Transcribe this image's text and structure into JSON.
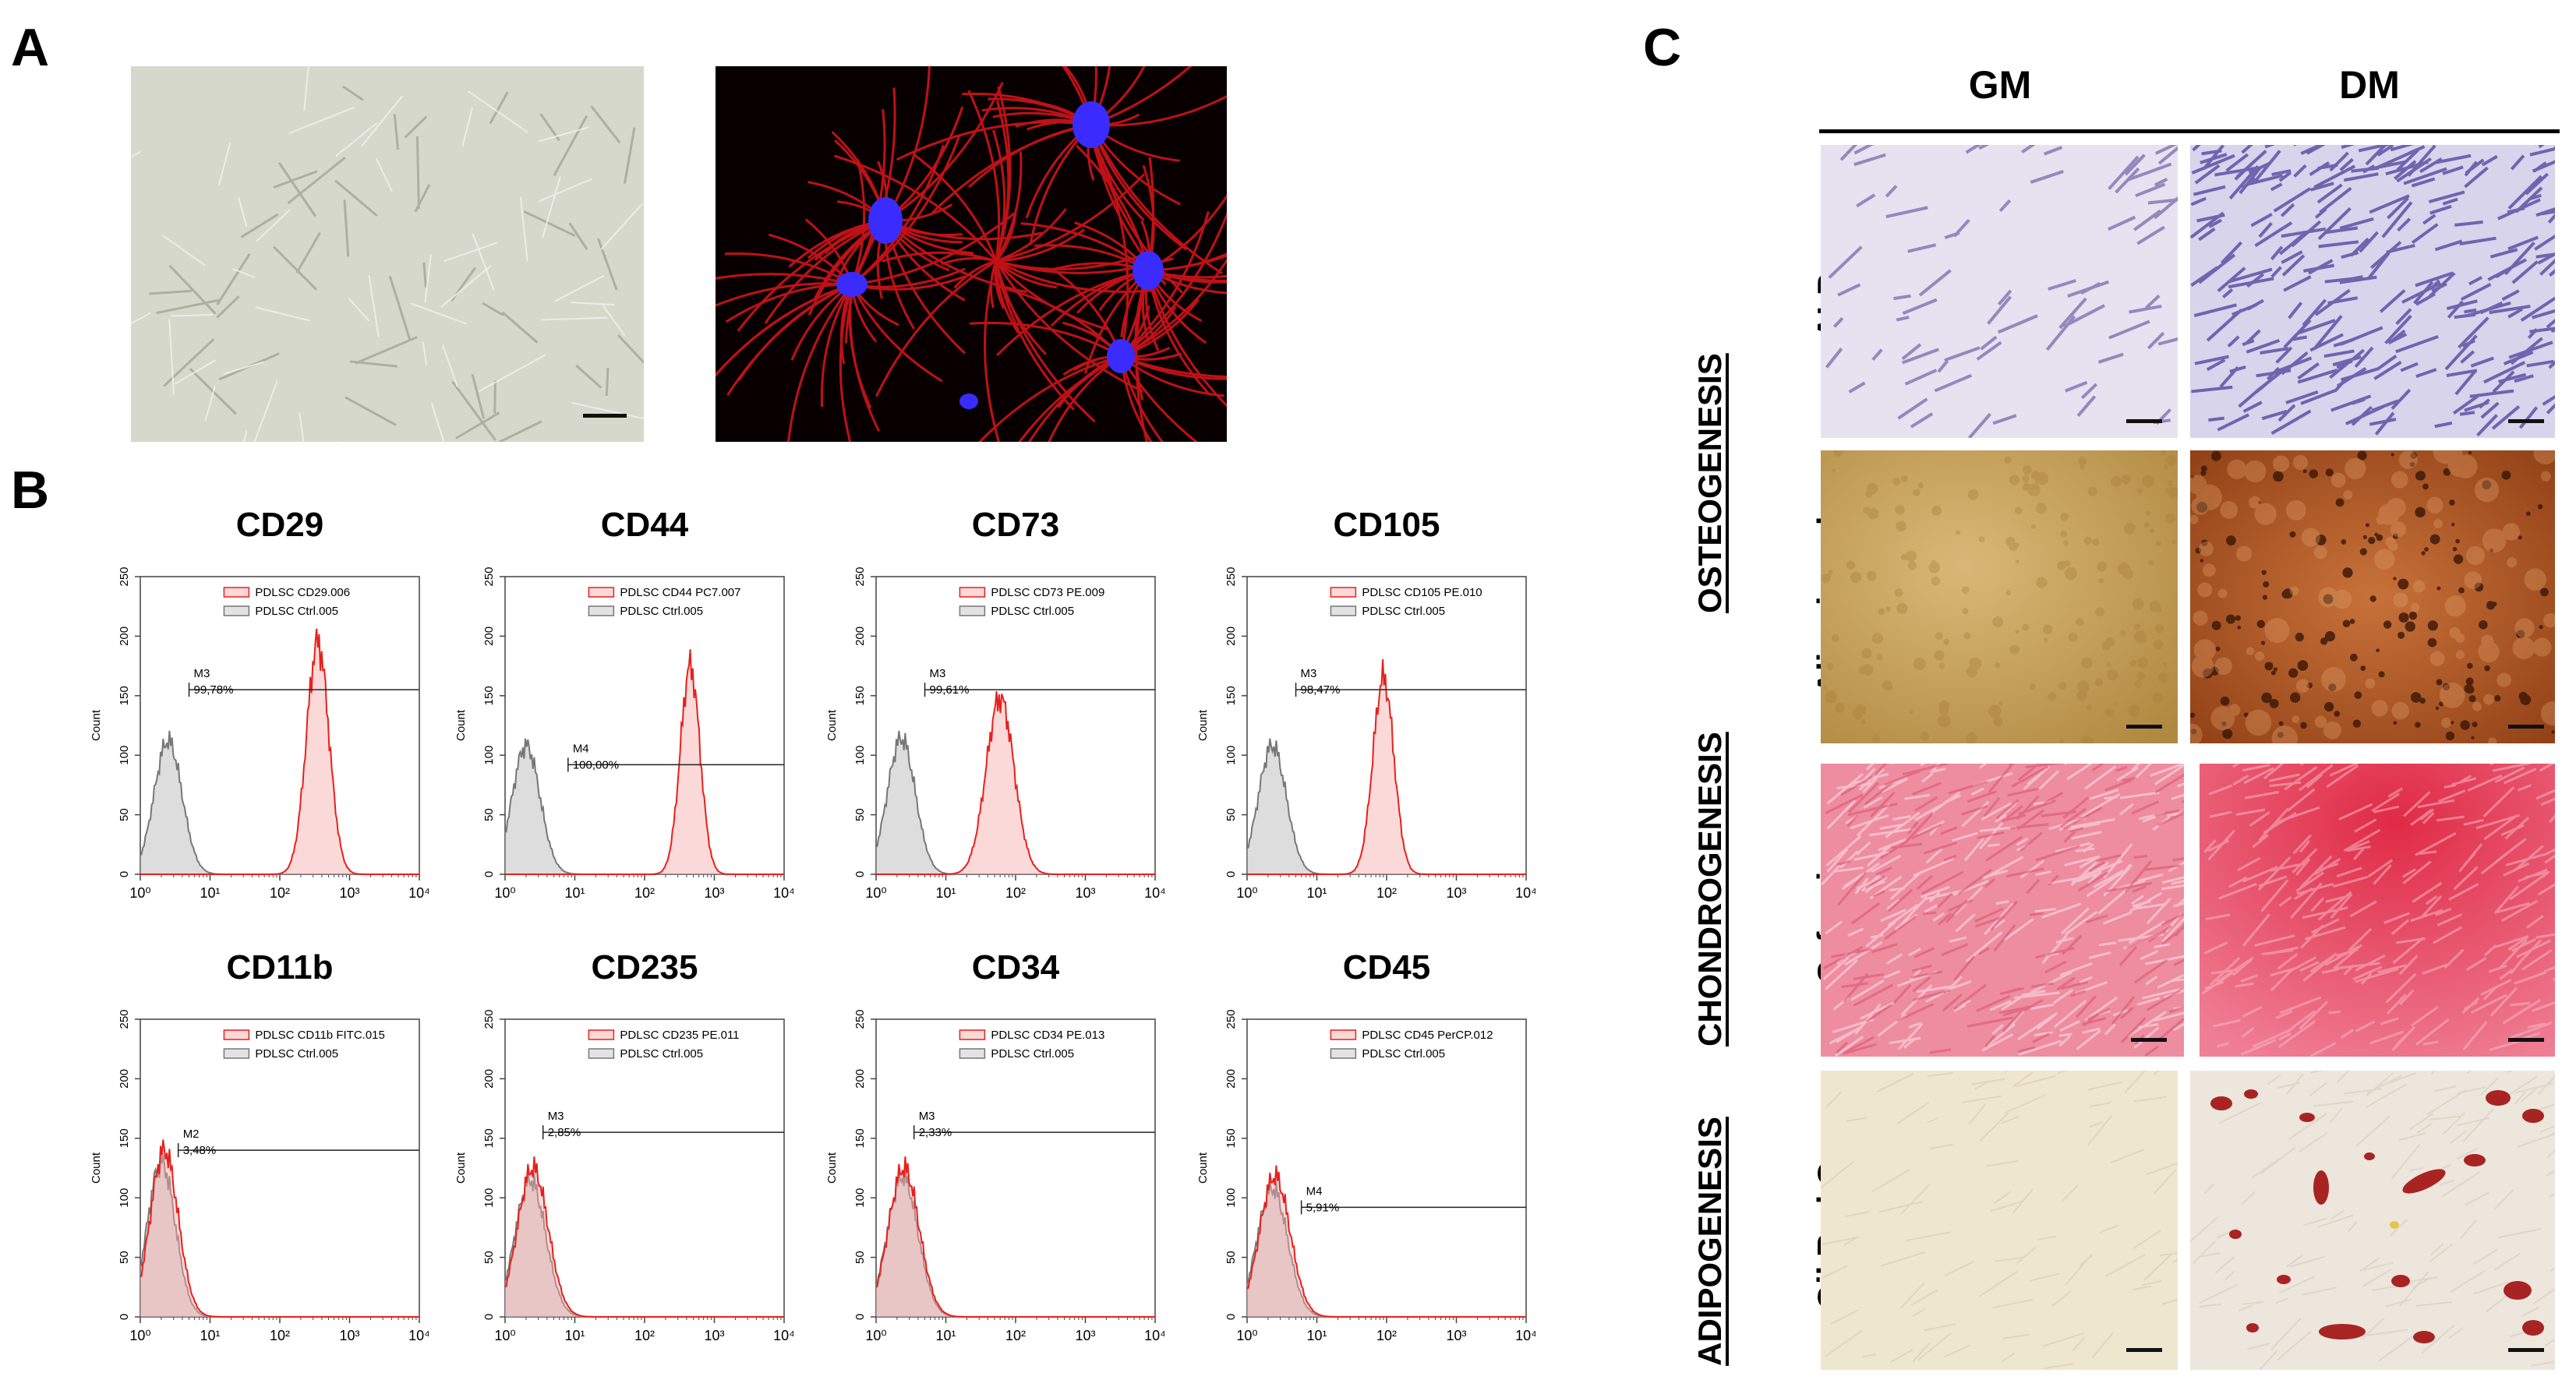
{
  "panels": {
    "a": "A",
    "b": "B",
    "c": "C"
  },
  "panel_c": {
    "columns": [
      "GM",
      "DM"
    ],
    "groups": [
      "OSTEOGENESIS",
      "CHONDROGENESIS",
      "ADIPOGENESIS"
    ],
    "rows": [
      "ALP",
      "Alizarin red",
      "Safranin",
      "Oil Red O"
    ]
  },
  "chart_data": [
    {
      "type": "area",
      "title": "CD29",
      "ylabel": "Count",
      "xscale": "log",
      "xlim": [
        1,
        10000
      ],
      "ylim": [
        0,
        250
      ],
      "yticks": [
        "0",
        "50",
        "100",
        "150",
        "200",
        "250"
      ],
      "legend": [
        "PDLSC CD29.006",
        "PDLSC Ctrl.005"
      ],
      "gate": {
        "name": "M3",
        "percent": "99,78%",
        "level": 155,
        "start": 5
      },
      "series": [
        {
          "name": "PDLSC CD29.006",
          "peak_x": 350,
          "peak_y": 195,
          "width": 0.16
        },
        {
          "name": "PDLSC Ctrl.005",
          "peak_x": 2.5,
          "peak_y": 112,
          "width": 0.2
        }
      ]
    },
    {
      "type": "area",
      "title": "CD44",
      "ylabel": "Count",
      "xscale": "log",
      "xlim": [
        1,
        10000
      ],
      "ylim": [
        0,
        250
      ],
      "yticks": [
        "0",
        "50",
        "100",
        "150",
        "200",
        "250"
      ],
      "legend": [
        "PDLSC CD44 PC7.007",
        "PDLSC Ctrl.005"
      ],
      "gate": {
        "name": "M4",
        "percent": "100,00%",
        "level": 92,
        "start": 8
      },
      "series": [
        {
          "name": "PDLSC CD44 PC7.007",
          "peak_x": 450,
          "peak_y": 175,
          "width": 0.14
        },
        {
          "name": "PDLSC Ctrl.005",
          "peak_x": 2.0,
          "peak_y": 108,
          "width": 0.2
        }
      ]
    },
    {
      "type": "area",
      "title": "CD73",
      "ylabel": "Count",
      "xscale": "log",
      "xlim": [
        1,
        10000
      ],
      "ylim": [
        0,
        250
      ],
      "yticks": [
        "0",
        "50",
        "100",
        "150",
        "200",
        "250"
      ],
      "legend": [
        "PDLSC CD73 PE.009",
        "PDLSC Ctrl.005"
      ],
      "gate": {
        "name": "M3",
        "percent": "99,61%",
        "level": 155,
        "start": 5
      },
      "series": [
        {
          "name": "PDLSC CD73 PE.009",
          "peak_x": 60,
          "peak_y": 148,
          "width": 0.2
        },
        {
          "name": "PDLSC Ctrl.005",
          "peak_x": 2.3,
          "peak_y": 114,
          "width": 0.2
        }
      ]
    },
    {
      "type": "area",
      "title": "CD105",
      "ylabel": "Count",
      "xscale": "log",
      "xlim": [
        1,
        10000
      ],
      "ylim": [
        0,
        250
      ],
      "yticks": [
        "0",
        "50",
        "100",
        "150",
        "200",
        "250"
      ],
      "legend": [
        "PDLSC CD105 PE.010",
        "PDLSC Ctrl.005"
      ],
      "gate": {
        "name": "M3",
        "percent": "98,47%",
        "level": 155,
        "start": 5
      },
      "series": [
        {
          "name": "PDLSC CD105 PE.010",
          "peak_x": 90,
          "peak_y": 165,
          "width": 0.15
        },
        {
          "name": "PDLSC Ctrl.005",
          "peak_x": 2.3,
          "peak_y": 108,
          "width": 0.2
        }
      ]
    },
    {
      "type": "area",
      "title": "CD11b",
      "ylabel": "Count",
      "xscale": "log",
      "xlim": [
        1,
        10000
      ],
      "ylim": [
        0,
        250
      ],
      "yticks": [
        "0",
        "50",
        "100",
        "150",
        "200",
        "250"
      ],
      "legend": [
        "PDLSC CD11b FITC.015",
        "PDLSC Ctrl.005"
      ],
      "gate": {
        "name": "M2",
        "percent": "3,48%",
        "level": 140,
        "start": 3.5
      },
      "series": [
        {
          "name": "PDLSC CD11b FITC.015",
          "peak_x": 2.2,
          "peak_y": 140,
          "width": 0.2
        },
        {
          "name": "PDLSC Ctrl.005",
          "peak_x": 2.0,
          "peak_y": 130,
          "width": 0.2
        }
      ]
    },
    {
      "type": "area",
      "title": "CD235",
      "ylabel": "Count",
      "xscale": "log",
      "xlim": [
        1,
        10000
      ],
      "ylim": [
        0,
        250
      ],
      "yticks": [
        "0",
        "50",
        "100",
        "150",
        "200",
        "250"
      ],
      "legend": [
        "PDLSC CD235 PE.011",
        "PDLSC Ctrl.005"
      ],
      "gate": {
        "name": "M3",
        "percent": "2,85%",
        "level": 155,
        "start": 3.5
      },
      "series": [
        {
          "name": "PDLSC CD235 PE.011",
          "peak_x": 2.5,
          "peak_y": 125,
          "width": 0.22
        },
        {
          "name": "PDLSC Ctrl.005",
          "peak_x": 2.3,
          "peak_y": 115,
          "width": 0.22
        }
      ]
    },
    {
      "type": "area",
      "title": "CD34",
      "ylabel": "Count",
      "xscale": "log",
      "xlim": [
        1,
        10000
      ],
      "ylim": [
        0,
        250
      ],
      "yticks": [
        "0",
        "50",
        "100",
        "150",
        "200",
        "250"
      ],
      "legend": [
        "PDLSC CD34 PE.013",
        "PDLSC Ctrl.005"
      ],
      "gate": {
        "name": "M3",
        "percent": "2,33%",
        "level": 155,
        "start": 3.5
      },
      "series": [
        {
          "name": "PDLSC CD34 PE.013",
          "peak_x": 2.5,
          "peak_y": 125,
          "width": 0.22
        },
        {
          "name": "PDLSC Ctrl.005",
          "peak_x": 2.4,
          "peak_y": 118,
          "width": 0.22
        }
      ]
    },
    {
      "type": "area",
      "title": "CD45",
      "ylabel": "Count",
      "xscale": "log",
      "xlim": [
        1,
        10000
      ],
      "ylim": [
        0,
        250
      ],
      "yticks": [
        "0",
        "50",
        "100",
        "150",
        "200",
        "250"
      ],
      "legend": [
        "PDLSC CD45 PerCP.012",
        "PDLSC Ctrl.005"
      ],
      "gate": {
        "name": "M4",
        "percent": "5,91%",
        "level": 92,
        "start": 6
      },
      "series": [
        {
          "name": "PDLSC CD45 PerCP.012",
          "peak_x": 2.5,
          "peak_y": 118,
          "width": 0.22
        },
        {
          "name": "PDLSC Ctrl.005",
          "peak_x": 2.3,
          "peak_y": 108,
          "width": 0.22
        }
      ]
    }
  ]
}
